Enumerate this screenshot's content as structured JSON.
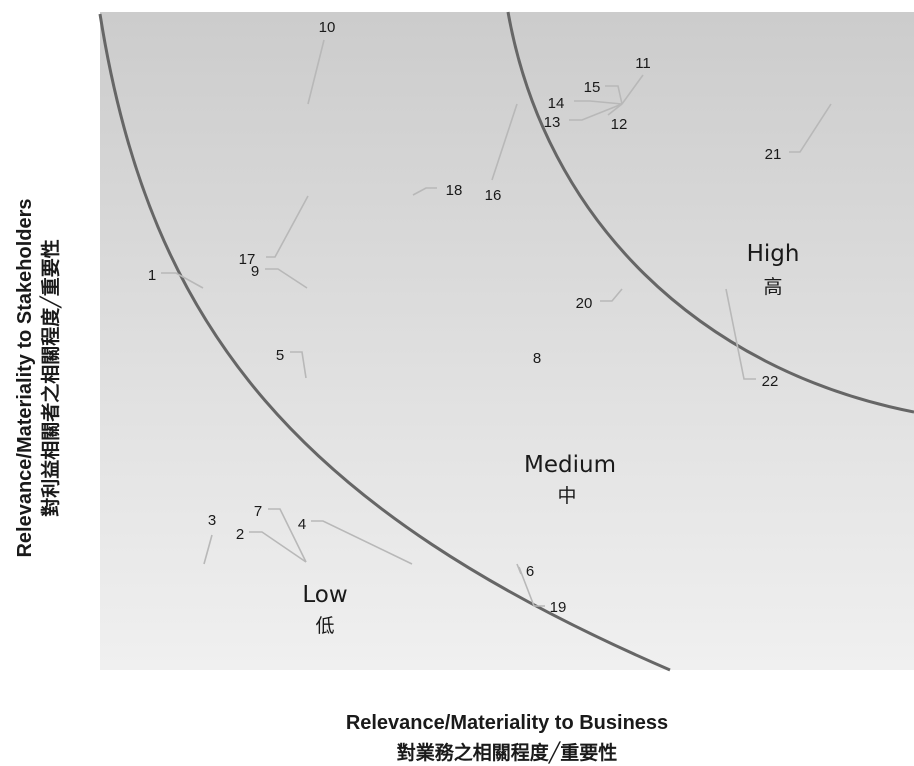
{
  "chart_data": {
    "type": "scatter",
    "xlabel": "Relevance/Materiality to Business",
    "xlabel_zh": "對業務之相關程度╱重要性",
    "ylabel": "Relevance/Materiality to Stakeholders",
    "ylabel_zh": "對利益相關者之相關程度╱重要性",
    "zones": [
      {
        "name": "Low",
        "name_zh": "低"
      },
      {
        "name": "Medium",
        "name_zh": "中"
      },
      {
        "name": "High",
        "name_zh": "高"
      }
    ],
    "points": [
      {
        "id": "1",
        "x": 1.2,
        "y": 5.8
      },
      {
        "id": "2",
        "x": 2.5,
        "y": 1.7
      },
      {
        "id": "3",
        "x": 1.3,
        "y": 1.6
      },
      {
        "id": "4",
        "x": 3.8,
        "y": 1.6
      },
      {
        "id": "5",
        "x": 2.5,
        "y": 4.6
      },
      {
        "id": "6",
        "x": 5.2,
        "y": 1.2
      },
      {
        "id": "7",
        "x": 2.5,
        "y": 1.6
      },
      {
        "id": "8",
        "x": 5.4,
        "y": 4.7
      },
      {
        "id": "9",
        "x": 2.5,
        "y": 5.9
      },
      {
        "id": "10",
        "x": 2.5,
        "y": 8.8
      },
      {
        "id": "11",
        "x": 6.4,
        "y": 8.9
      },
      {
        "id": "12",
        "x": 6.3,
        "y": 8.8
      },
      {
        "id": "13",
        "x": 6.3,
        "y": 8.8
      },
      {
        "id": "14",
        "x": 6.3,
        "y": 8.8
      },
      {
        "id": "15",
        "x": 6.3,
        "y": 8.8
      },
      {
        "id": "16",
        "x": 5.1,
        "y": 8.8
      },
      {
        "id": "17",
        "x": 2.5,
        "y": 7.1
      },
      {
        "id": "18",
        "x": 3.9,
        "y": 7.2
      },
      {
        "id": "19",
        "x": 5.2,
        "y": 0.9
      },
      {
        "id": "20",
        "x": 6.2,
        "y": 5.8
      },
      {
        "id": "21",
        "x": 9.0,
        "y": 8.6
      },
      {
        "id": "22",
        "x": 7.8,
        "y": 5.8
      }
    ],
    "colors": {
      "background_top": "#cccccc",
      "background_bottom": "#f0f0f0",
      "curve": "#666666",
      "leader": "#b8b8b8",
      "text": "#1a1a1a"
    },
    "grid": false,
    "legend": "none"
  }
}
